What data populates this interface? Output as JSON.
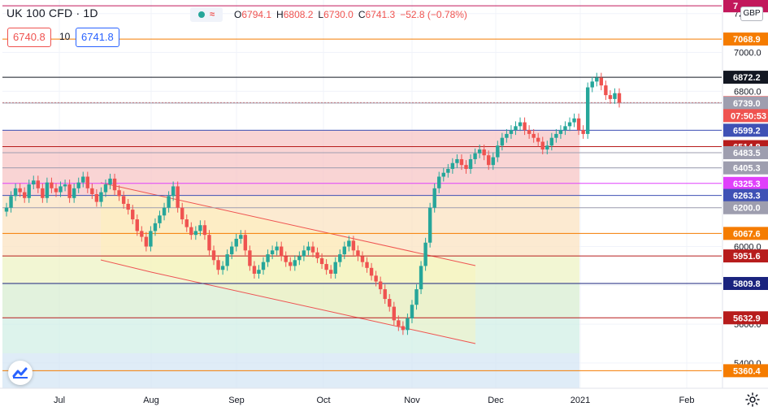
{
  "header": {
    "symbol": "UK 100 CFD · 1D",
    "open_label": "O",
    "open": "6794.1",
    "high_label": "H",
    "high": "6808.2",
    "low_label": "L",
    "low": "6730.0",
    "close_label": "C",
    "close": "6741.3",
    "change": "−52.8 (−0.78%)"
  },
  "quote": {
    "bid": "6740.8",
    "spread": "10",
    "ask": "6741.8"
  },
  "currency": "GBP",
  "colors": {
    "bull": "#26a69a",
    "bear": "#ef5350",
    "accent": "#2962ff",
    "grid": "#f0f3fa",
    "axis_text": "#131722"
  },
  "icons": [
    "eye-icon",
    "wave-icon",
    "tradingview-logo-icon",
    "gear-icon"
  ],
  "chart_data": {
    "type": "candlestick",
    "x_ticks": [
      "Jul",
      "Aug",
      "Sep",
      "Oct",
      "Nov",
      "Dec",
      "2021",
      "Feb"
    ],
    "y_ticks": [
      "7200.0",
      "7000.0",
      "6800.0",
      "6600.0",
      "6400.0",
      "6200.0",
      "6000.0",
      "5800.0",
      "5600.0",
      "5400.0"
    ],
    "ylim": [
      5270,
      7270
    ],
    "levels": [
      {
        "value": 7240.0,
        "label": "7",
        "color": "#c2185b"
      },
      {
        "value": 7068.9,
        "label": "7068.9",
        "color": "#f57c00"
      },
      {
        "value": 6872.2,
        "label": "6872.2",
        "color": "#131722"
      },
      {
        "value": 6741.3,
        "label": "6741.3",
        "color": "#ef5350"
      },
      {
        "value": 6739.0,
        "label": "6739.0",
        "color": "#9e9eaf"
      },
      {
        "value": 6599.2,
        "label": "6599.2",
        "color": "#3f51b5"
      },
      {
        "value": 6514.8,
        "label": "6514.8",
        "color": "#b71c1c"
      },
      {
        "value": 6483.5,
        "label": "6483.5",
        "color": "#9e9eaf"
      },
      {
        "value": 6405.3,
        "label": "6405.3",
        "color": "#9e9eaf"
      },
      {
        "value": 6325.3,
        "label": "6325.3",
        "color": "#e040fb"
      },
      {
        "value": 6263.3,
        "label": "6263.3",
        "color": "#3f51b5"
      },
      {
        "value": 6200.0,
        "label": "6200.0",
        "color": "#9e9eaf"
      },
      {
        "value": 6067.6,
        "label": "6067.6",
        "color": "#f57c00"
      },
      {
        "value": 5951.6,
        "label": "5951.6",
        "color": "#b71c1c"
      },
      {
        "value": 5809.8,
        "label": "5809.8",
        "color": "#1a237e"
      },
      {
        "value": 5632.9,
        "label": "5632.9",
        "color": "#b71c1c"
      },
      {
        "value": 5360.4,
        "label": "5360.4",
        "color": "#f57c00"
      }
    ],
    "countdown": "07:50:53",
    "fib_bands": [
      {
        "from": 6599.2,
        "to": 6263.3,
        "color": "#f7c6c6"
      },
      {
        "from": 6263.3,
        "to": 5951.6,
        "color": "#fbe3c2"
      },
      {
        "from": 5951.6,
        "to": 5809.8,
        "color": "#eef3c4"
      },
      {
        "from": 5809.8,
        "to": 5632.9,
        "color": "#d8eed2"
      },
      {
        "from": 5632.9,
        "to": 5450.0,
        "color": "#d2efe6"
      },
      {
        "from": 5450.0,
        "to": 5270.0,
        "color": "#d4e6f4"
      }
    ],
    "close_series": [
      6200,
      6260,
      6300,
      6280,
      6250,
      6320,
      6340,
      6300,
      6250,
      6330,
      6300,
      6280,
      6310,
      6320,
      6250,
      6300,
      6330,
      6360,
      6300,
      6270,
      6230,
      6280,
      6320,
      6350,
      6290,
      6260,
      6220,
      6190,
      6140,
      6080,
      6050,
      6000,
      6080,
      6120,
      6160,
      6200,
      6260,
      6310,
      6200,
      6140,
      6100,
      6060,
      6080,
      6110,
      6060,
      5980,
      5930,
      5880,
      5900,
      5960,
      6000,
      6040,
      6060,
      5980,
      5900,
      5860,
      5880,
      5920,
      5960,
      5980,
      6000,
      5950,
      5920,
      5900,
      5930,
      5950,
      5980,
      6000,
      5970,
      5940,
      5910,
      5880,
      5860,
      5920,
      5960,
      6000,
      6030,
      5980,
      5950,
      5920,
      5890,
      5850,
      5820,
      5780,
      5730,
      5690,
      5620,
      5590,
      5570,
      5630,
      5700,
      5780,
      5900,
      6020,
      6200,
      6300,
      6360,
      6380,
      6400,
      6430,
      6450,
      6420,
      6400,
      6450,
      6480,
      6500,
      6470,
      6420,
      6460,
      6520,
      6560,
      6580,
      6600,
      6620,
      6640,
      6600,
      6580,
      6560,
      6540,
      6500,
      6520,
      6560,
      6580,
      6600,
      6620,
      6640,
      6660,
      6600,
      6580,
      6820,
      6850,
      6870,
      6830,
      6780,
      6760,
      6790,
      6741.3
    ]
  }
}
